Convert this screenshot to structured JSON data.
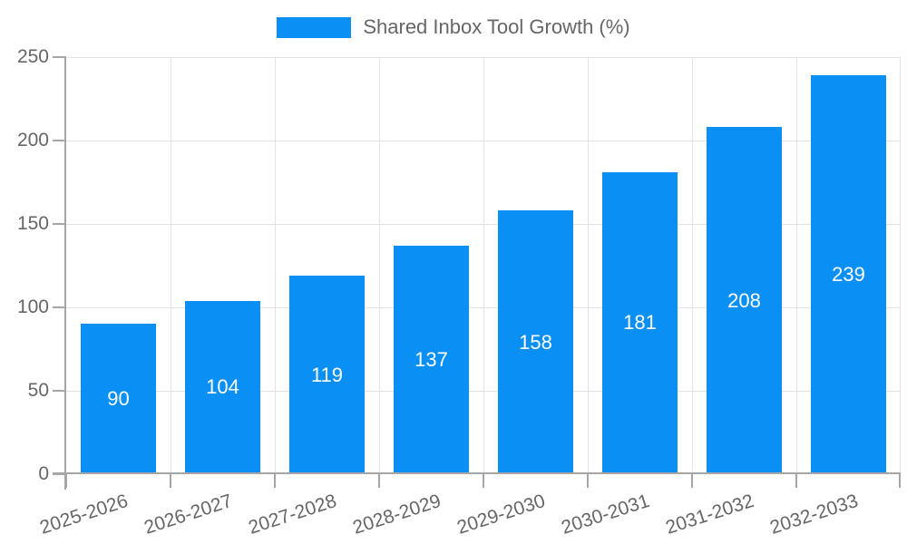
{
  "chart_data": {
    "type": "bar",
    "title": "Shared Inbox Tool Growth (%)",
    "categories": [
      "2025-2026",
      "2026-2027",
      "2027-2028",
      "2028-2029",
      "2029-2030",
      "2030-2031",
      "2031-2032",
      "2032-2033"
    ],
    "values": [
      90,
      104,
      119,
      137,
      158,
      181,
      208,
      239
    ],
    "xlabel": "",
    "ylabel": "",
    "ylim": [
      0,
      250
    ],
    "yticks": [
      0,
      50,
      100,
      150,
      200,
      250
    ],
    "grid": true,
    "legend_position": "top-center",
    "value_label_position": "inside-center",
    "colors": {
      "bar": "#0a90f5",
      "bar_label": "#ffffff",
      "axis": "#a6a6a6",
      "grid": "#e3e3e3",
      "text": "#666666",
      "background": "#ffffff"
    }
  }
}
